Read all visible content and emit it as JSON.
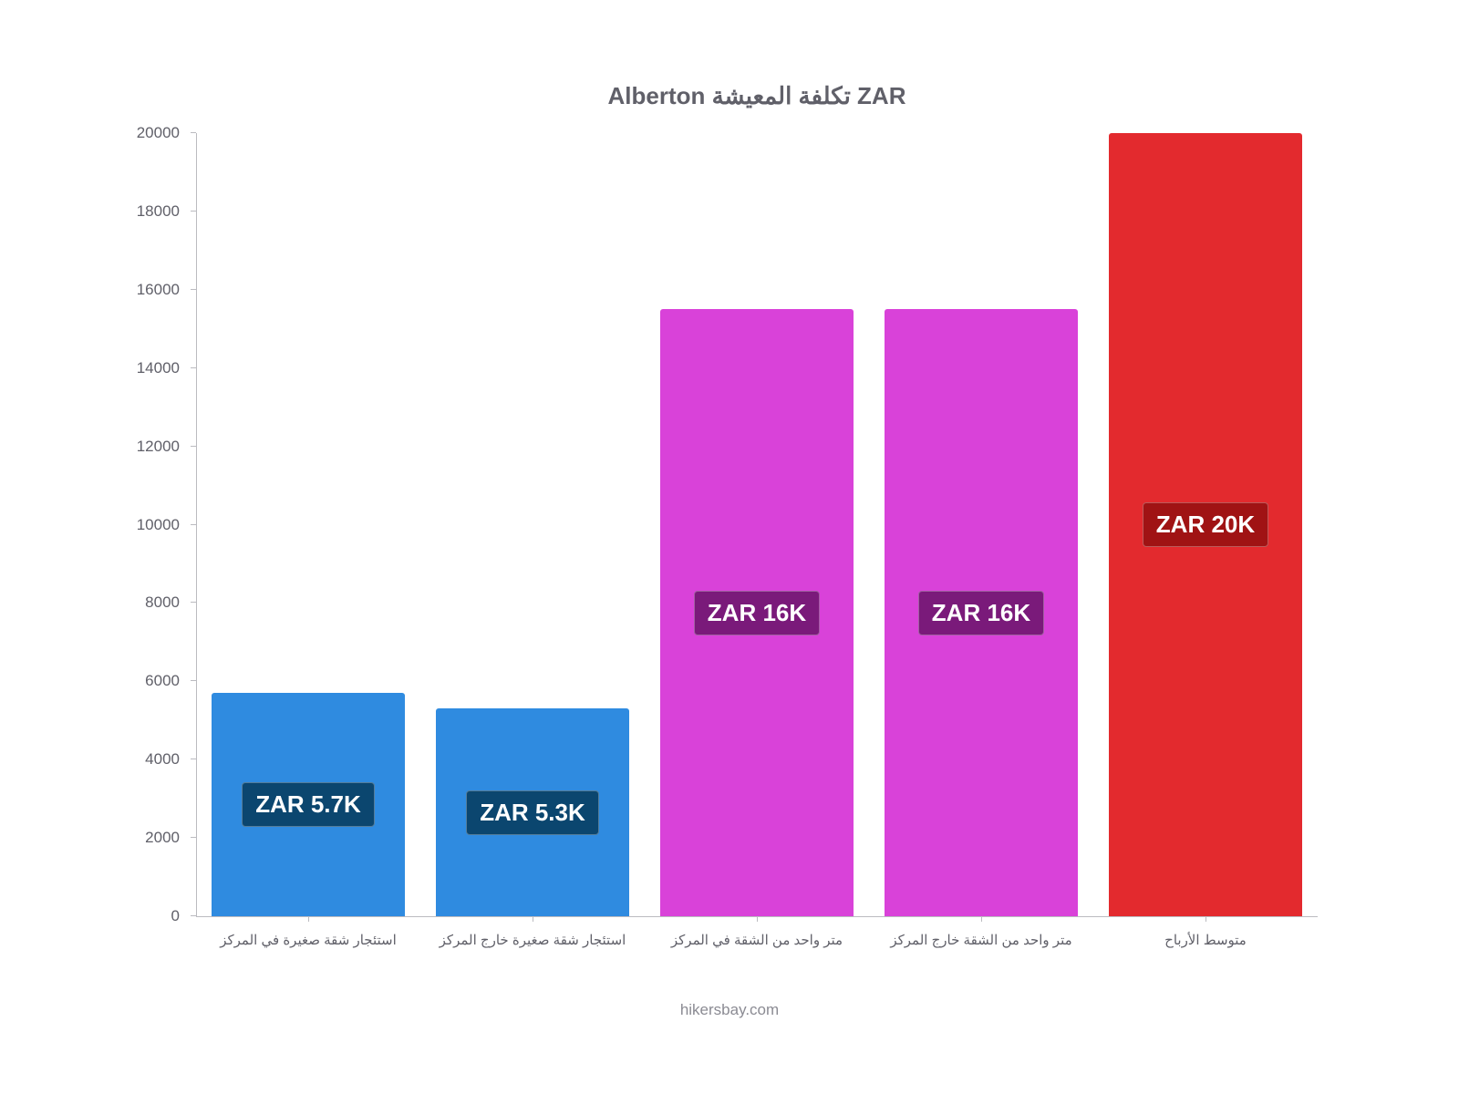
{
  "chart": {
    "type": "bar",
    "title": "Alberton تكلفة المعيشة ZAR",
    "title_fontsize": 26,
    "title_color": "#606069",
    "background_color": "#ffffff",
    "ylim": [
      0,
      20000
    ],
    "ytick_step": 2000,
    "yticks": [
      0,
      2000,
      4000,
      6000,
      8000,
      10000,
      12000,
      14000,
      16000,
      18000,
      20000
    ],
    "axis_color": "#bbbbc0",
    "tick_label_color": "#606069",
    "tick_label_fontsize": 17,
    "x_label_fontsize": 15,
    "bar_width_pct": 96,
    "bars": [
      {
        "category": "استئجار شقة صغيرة في المركز",
        "value": 5700,
        "display_label": "ZAR 5.7K",
        "bar_color": "#2f8be0",
        "label_bg_color": "#0b466f"
      },
      {
        "category": "استئجار شقة صغيرة خارج المركز",
        "value": 5300,
        "display_label": "ZAR 5.3K",
        "bar_color": "#2f8be0",
        "label_bg_color": "#0b466f"
      },
      {
        "category": "متر واحد من الشقة في المركز",
        "value": 15500,
        "display_label": "ZAR 16K",
        "bar_color": "#d942d9",
        "label_bg_color": "#7a1a7a"
      },
      {
        "category": "متر واحد من الشقة خارج المركز",
        "value": 15500,
        "display_label": "ZAR 16K",
        "bar_color": "#d942d9",
        "label_bg_color": "#7a1a7a"
      },
      {
        "category": "متوسط الأرباح",
        "value": 20000,
        "display_label": "ZAR 20K",
        "bar_color": "#e32a2e",
        "label_bg_color": "#a01314"
      }
    ],
    "bar_label_text_color": "#ffffff",
    "bar_label_fontsize": 26,
    "attribution": "hikersbay.com",
    "attribution_color": "#8b8b93"
  }
}
